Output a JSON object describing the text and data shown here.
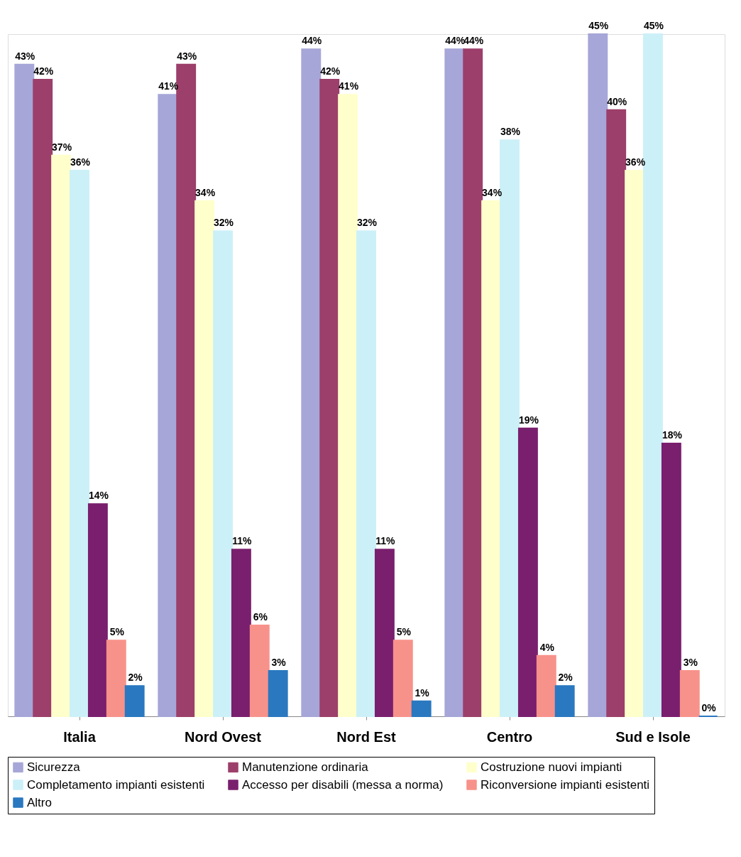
{
  "chart_data": {
    "type": "bar",
    "categories": [
      "Italia",
      "Nord Ovest",
      "Nord Est",
      "Centro",
      "Sud e Isole"
    ],
    "series": [
      {
        "name": "Sicurezza",
        "color": "#a6a6d8",
        "values": [
          43,
          41,
          44,
          44,
          45
        ],
        "value_labels": [
          "43%",
          "41%",
          "44%",
          "44%",
          "45%"
        ]
      },
      {
        "name": "Manutenzione ordinaria",
        "color": "#9c3f6a",
        "values": [
          42,
          43,
          42,
          44,
          40
        ],
        "value_labels": [
          "42%",
          "43%",
          "42%",
          "44%",
          "40%"
        ]
      },
      {
        "name": "Costruzione nuovi impianti",
        "color": "#ffffcc",
        "values": [
          37,
          34,
          41,
          34,
          36
        ],
        "value_labels": [
          "37%",
          "34%",
          "41%",
          "34%",
          "36%"
        ]
      },
      {
        "name": "Completamento impianti esistenti",
        "color": "#ccf0f8",
        "values": [
          36,
          32,
          32,
          38,
          45
        ],
        "value_labels": [
          "36%",
          "32%",
          "32%",
          "38%",
          "45%"
        ]
      },
      {
        "name": "Accesso per disabili (messa a norma)",
        "color": "#7a1f6e",
        "values": [
          14,
          11,
          11,
          19,
          18
        ],
        "value_labels": [
          "14%",
          "11%",
          "11%",
          "19%",
          "18%"
        ]
      },
      {
        "name": "Riconversione impianti esistenti",
        "color": "#f7928a",
        "values": [
          5,
          6,
          5,
          4,
          3
        ],
        "value_labels": [
          "5%",
          "6%",
          "5%",
          "4%",
          "3%"
        ]
      },
      {
        "name": "Altro",
        "color": "#2a78c0",
        "values": [
          2,
          3,
          1,
          2,
          0
        ],
        "value_labels": [
          "2%",
          "3%",
          "1%",
          "2%",
          "0%"
        ]
      }
    ],
    "legend": "bottom"
  }
}
